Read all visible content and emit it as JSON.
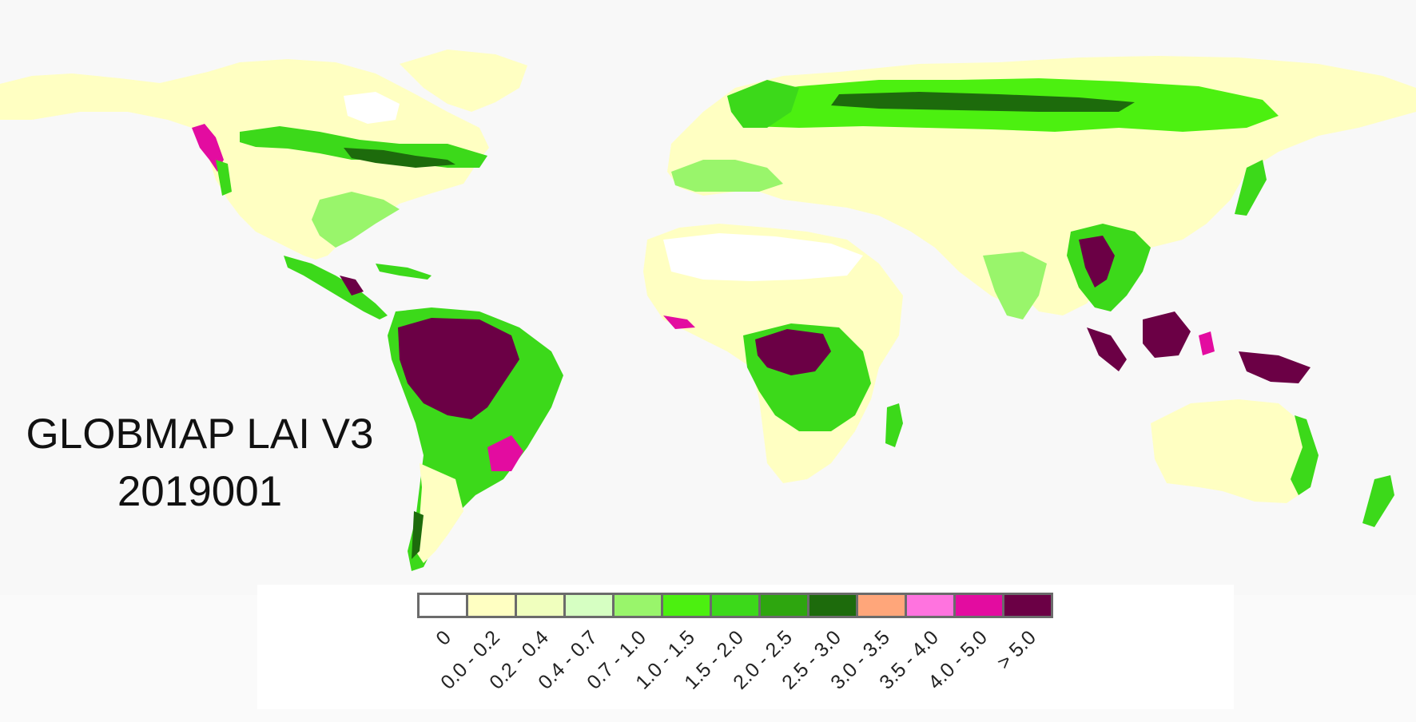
{
  "title": {
    "line1": "GLOBMAP LAI V3",
    "line2": "2019001"
  },
  "legend": {
    "items": [
      {
        "label": "0",
        "color": "#ffffff"
      },
      {
        "label": "0.0 - 0.2",
        "color": "#ffffc2"
      },
      {
        "label": "0.2 - 0.4",
        "color": "#f0ffbe"
      },
      {
        "label": "0.4 - 0.7",
        "color": "#d6ffc2"
      },
      {
        "label": "0.7 - 1.0",
        "color": "#99f56b"
      },
      {
        "label": "1.0 - 1.5",
        "color": "#4cf010"
      },
      {
        "label": "1.5 - 2.0",
        "color": "#3cd91a"
      },
      {
        "label": "2.0 - 2.5",
        "color": "#2ea60f"
      },
      {
        "label": "2.5 - 3.0",
        "color": "#1d6b0c"
      },
      {
        "label": "3.0 - 3.5",
        "color": "#ffa67a"
      },
      {
        "label": "3.5 - 4.0",
        "color": "#ff73df"
      },
      {
        "label": "4.0 - 5.0",
        "color": "#e30ca0"
      },
      {
        "label": "> 5.0",
        "color": "#6b0045"
      }
    ]
  },
  "map": {
    "background_color": "#f8f8f8",
    "ocean_color": "#f8f8f8"
  }
}
